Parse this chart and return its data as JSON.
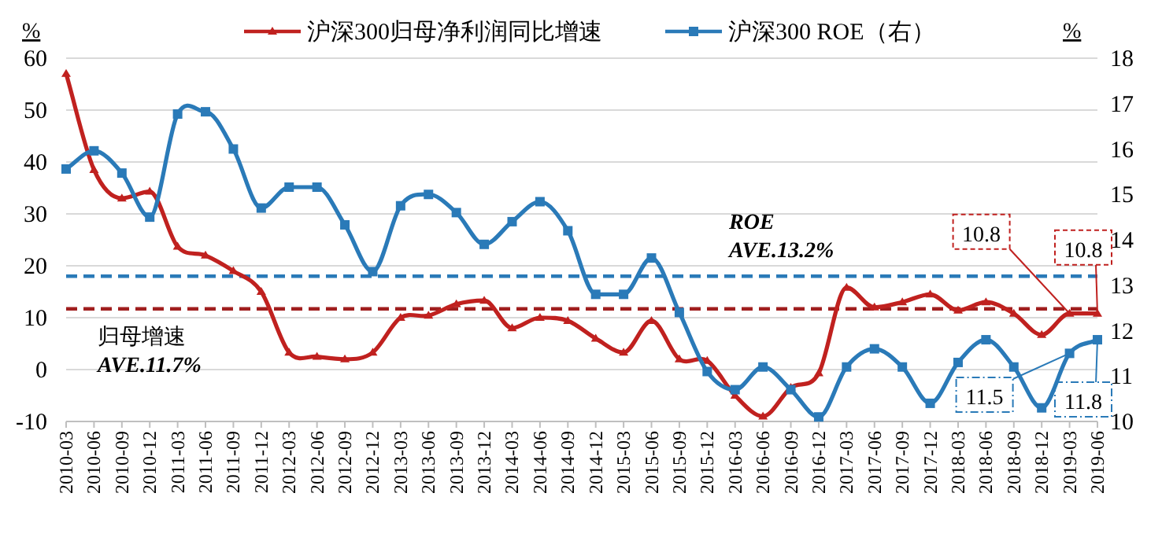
{
  "chart_data": {
    "type": "line",
    "categories": [
      "2010-03",
      "2010-06",
      "2010-09",
      "2010-12",
      "2011-03",
      "2011-06",
      "2011-09",
      "2011-12",
      "2012-03",
      "2012-06",
      "2012-09",
      "2012-12",
      "2013-03",
      "2013-06",
      "2013-09",
      "2013-12",
      "2014-03",
      "2014-06",
      "2014-09",
      "2014-12",
      "2015-03",
      "2015-06",
      "2015-09",
      "2015-12",
      "2016-03",
      "2016-06",
      "2016-09",
      "2016-12",
      "2017-03",
      "2017-06",
      "2017-09",
      "2017-12",
      "2018-03",
      "2018-06",
      "2018-09",
      "2018-12",
      "2019-03",
      "2019-06"
    ],
    "series": [
      {
        "name": "沪深300归母净利润同比增速",
        "color": "#c0211f",
        "marker": "triangle",
        "values": [
          57,
          38.5,
          33,
          34.3,
          23.7,
          22,
          19,
          15,
          3.3,
          2.5,
          2,
          3.3,
          10,
          10.4,
          12.6,
          13.3,
          8,
          10,
          9.4,
          6,
          3.3,
          9.4,
          2,
          1.7,
          -5,
          -9,
          -3.5,
          -0.7,
          15.8,
          12,
          13,
          14.5,
          11.4,
          13,
          10.8,
          6.7,
          10.8,
          10.8
        ],
        "value_labels": [
          null,
          null,
          null,
          null,
          null,
          null,
          null,
          null,
          null,
          null,
          null,
          null,
          null,
          null,
          null,
          null,
          null,
          null,
          null,
          null,
          null,
          null,
          null,
          null,
          null,
          null,
          null,
          null,
          null,
          null,
          null,
          null,
          null,
          null,
          null,
          null,
          "10.8",
          "10.8"
        ]
      },
      {
        "name": "沪深300 ROE（右）",
        "color": "#2a7ab8",
        "marker": "square",
        "axis": "y2",
        "values": [
          15.56,
          15.96,
          15.47,
          14.5,
          16.77,
          16.82,
          16.0,
          14.7,
          15.16,
          15.16,
          14.33,
          13.3,
          14.75,
          15.0,
          14.6,
          13.9,
          14.4,
          14.84,
          14.2,
          12.8,
          12.8,
          13.6,
          12.4,
          11.1,
          10.7,
          11.2,
          10.7,
          10.1,
          11.2,
          11.6,
          11.2,
          10.4,
          11.3,
          11.8,
          11.2,
          10.3,
          11.5,
          11.8
        ],
        "value_labels": [
          null,
          null,
          null,
          null,
          null,
          null,
          null,
          null,
          null,
          null,
          null,
          null,
          null,
          null,
          null,
          null,
          null,
          null,
          null,
          null,
          null,
          null,
          null,
          null,
          null,
          null,
          null,
          null,
          null,
          null,
          null,
          null,
          null,
          null,
          null,
          null,
          "11.5",
          "11.8"
        ]
      }
    ],
    "ylabel": "%",
    "y2label": "%",
    "ylim": [
      -10,
      60
    ],
    "yticks": [
      -10,
      0,
      10,
      20,
      30,
      40,
      50,
      60
    ],
    "y2lim": [
      10,
      18
    ],
    "y2ticks": [
      10,
      11,
      12,
      13,
      14,
      15,
      16,
      17,
      18
    ],
    "ref_lines": [
      {
        "axis": "y",
        "value": 11.7,
        "label": "归母增速\n**AVE.11.7%**",
        "color": "#a01e1e",
        "line_style": "dashed"
      },
      {
        "axis": "y2",
        "value": 13.2,
        "label": "**ROE**\n**AVE.13.2%**",
        "color": "#2a7ab8",
        "line_style": "dashed"
      }
    ],
    "grid": "y",
    "legend": "top",
    "line_style": "solid"
  }
}
